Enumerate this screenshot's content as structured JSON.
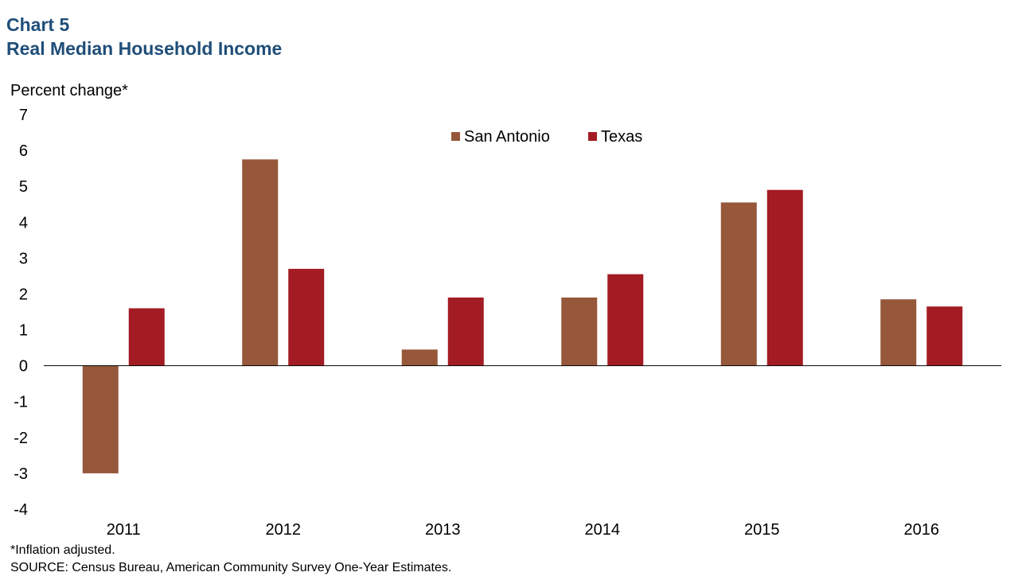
{
  "header": {
    "title": "Chart 5",
    "subtitle": "Real Median Household Income"
  },
  "footer": {
    "note": "*Inflation adjusted.",
    "source": "SOURCE: Census Bureau, American Community Survey One-Year Estimates."
  },
  "colors": {
    "title": "#1F4E79",
    "san_antonio": "#96573A",
    "texas": "#A31B23",
    "axis": "#000000"
  },
  "chart_data": {
    "type": "bar",
    "title": "Real Median Household Income",
    "ylabel": "Percent change*",
    "xlabel": "",
    "categories": [
      "2011",
      "2012",
      "2013",
      "2014",
      "2015",
      "2016"
    ],
    "series": [
      {
        "name": "San Antonio",
        "values": [
          -3.0,
          5.75,
          0.45,
          1.9,
          4.55,
          1.85
        ]
      },
      {
        "name": "Texas",
        "values": [
          1.6,
          2.7,
          1.9,
          2.55,
          4.9,
          1.65
        ]
      }
    ],
    "ylim": [
      -4,
      7
    ],
    "yticks": [
      "7",
      "6",
      "5",
      "4",
      "3",
      "2",
      "1",
      "0",
      "-1",
      "-2",
      "-3",
      "-4"
    ],
    "grid": false,
    "legend_position": "top"
  }
}
